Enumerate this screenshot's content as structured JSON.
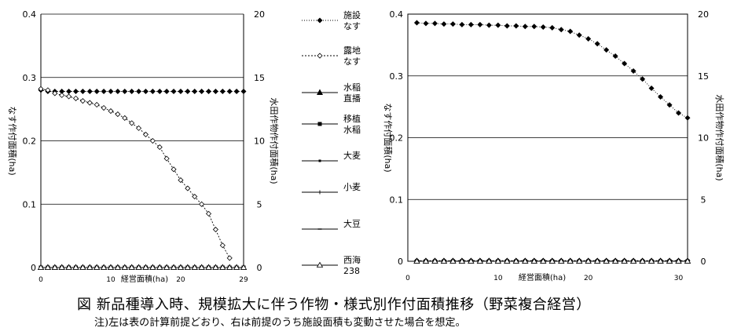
{
  "caption": "図 新品種導入時、規模拡大に伴う作物・様式別作付面積推移（野菜複合経営）",
  "note": "注)左は表の計算前提どおり、右は前提のうち施設面積も変動させた場合を想定。",
  "legend": [
    {
      "key": "shisetsu",
      "label": [
        "施設",
        "なす"
      ]
    },
    {
      "key": "roji",
      "label": [
        "露地",
        "なす"
      ]
    },
    {
      "key": "chokuha",
      "label": [
        "水稲",
        "直播"
      ]
    },
    {
      "key": "ishoku",
      "label": [
        "移植",
        "水稲"
      ]
    },
    {
      "key": "omugi",
      "label": [
        "大麦"
      ]
    },
    {
      "key": "komugi",
      "label": [
        "小麦"
      ]
    },
    {
      "key": "daizu",
      "label": [
        "大豆"
      ]
    },
    {
      "key": "saikai",
      "label": [
        "西海",
        "238"
      ]
    }
  ],
  "chart_data": [
    {
      "type": "line",
      "xlabel": "経営面積(ha)",
      "ylabel_left": "なす作付面積(ha)",
      "ylabel_right": "水田作物作付面積(ha)",
      "xlim": [
        0,
        29
      ],
      "ylim_left": [
        0,
        0.4
      ],
      "ylim_right": [
        0,
        20
      ],
      "xticks": [
        0,
        10,
        20,
        29
      ],
      "xtick_labels": [
        "0",
        "10",
        "20",
        "29"
      ],
      "yticks_left": [
        "0",
        "0.1",
        "0.2",
        "0.3",
        "0.4"
      ],
      "yticks_right": [
        "0",
        "5",
        "10",
        "15",
        "20"
      ],
      "grid": "horizontal",
      "series": [
        {
          "name": "施設なす",
          "axis": "left",
          "x": [
            0,
            1,
            2,
            3,
            4,
            5,
            6,
            7,
            8,
            9,
            10,
            11,
            12,
            13,
            14,
            15,
            16,
            17,
            18,
            19,
            20,
            21,
            22,
            23,
            24,
            25,
            26,
            27,
            28,
            29
          ],
          "y": [
            0.28,
            0.278,
            0.278,
            0.278,
            0.278,
            0.278,
            0.278,
            0.278,
            0.278,
            0.278,
            0.278,
            0.278,
            0.278,
            0.278,
            0.278,
            0.278,
            0.278,
            0.278,
            0.278,
            0.278,
            0.278,
            0.278,
            0.278,
            0.278,
            0.278,
            0.278,
            0.278,
            0.278,
            0.278,
            0.278
          ]
        },
        {
          "name": "露地なす",
          "axis": "left",
          "x": [
            0,
            1,
            2,
            3,
            4,
            5,
            6,
            7,
            8,
            9,
            10,
            11,
            12,
            13,
            14,
            15,
            16,
            17,
            18,
            19,
            20,
            21,
            22,
            23,
            24,
            25,
            26,
            27
          ],
          "y": [
            0.282,
            0.28,
            0.275,
            0.272,
            0.27,
            0.267,
            0.263,
            0.26,
            0.257,
            0.252,
            0.247,
            0.242,
            0.236,
            0.228,
            0.22,
            0.21,
            0.2,
            0.19,
            0.172,
            0.155,
            0.138,
            0.125,
            0.112,
            0.1,
            0.085,
            0.06,
            0.035,
            0.015
          ]
        },
        {
          "name": "水稲直播",
          "axis": "right",
          "x": [
            0,
            1,
            2,
            3,
            4,
            5,
            6,
            7,
            8,
            9,
            10,
            11,
            12,
            13,
            14,
            15,
            16,
            17,
            18,
            19,
            20,
            21,
            22,
            23,
            24,
            25,
            26,
            27,
            28,
            29
          ],
          "y": [
            0,
            0,
            0,
            0,
            0,
            0,
            0,
            0,
            0,
            0,
            0,
            0,
            0,
            0,
            0,
            0,
            0,
            0,
            0,
            0,
            0,
            0,
            0,
            0,
            0,
            0,
            0,
            0,
            0,
            0
          ]
        },
        {
          "name": "移植水稲",
          "axis": "right",
          "x": [
            0,
            1,
            2,
            3,
            4,
            5,
            6,
            7,
            8,
            9,
            10,
            11,
            12,
            13,
            14,
            15,
            16,
            17,
            18,
            19,
            20,
            21,
            22,
            23,
            24,
            25,
            26,
            27,
            28,
            29
          ],
          "y": [
            0,
            0,
            0,
            0,
            0,
            0,
            0,
            0,
            0,
            0,
            0,
            0,
            0,
            0,
            0,
            0,
            0,
            0,
            0,
            0,
            0,
            0,
            0,
            0,
            0,
            0,
            0,
            0,
            0,
            0
          ]
        },
        {
          "name": "大麦",
          "axis": "right",
          "x": [
            0,
            1,
            2,
            3,
            4,
            5,
            6,
            7,
            8,
            9,
            10,
            11,
            12,
            13,
            14,
            15,
            16,
            17,
            18,
            19,
            20,
            21,
            22,
            23,
            24,
            25,
            26,
            27,
            28,
            29
          ],
          "y": [
            0,
            0,
            0,
            0,
            0,
            0,
            0,
            0,
            0,
            0,
            0,
            0,
            0,
            0,
            0,
            0,
            0,
            0,
            0,
            0,
            0,
            0,
            0,
            0,
            0,
            0,
            0,
            0,
            0,
            0
          ]
        },
        {
          "name": "小麦",
          "axis": "right",
          "x": [
            0,
            1,
            2,
            3,
            4,
            5,
            6,
            7,
            8,
            9,
            10,
            11,
            12,
            13,
            14,
            15,
            16,
            17,
            18,
            19,
            20,
            21,
            22,
            23,
            24,
            25,
            26,
            27,
            28,
            29
          ],
          "y": [
            0,
            0,
            0,
            0,
            0,
            0,
            0,
            0,
            0,
            0,
            0,
            0,
            0,
            0,
            0,
            0,
            0,
            0,
            0,
            0,
            0,
            0,
            0,
            0,
            0,
            0,
            0,
            0,
            0,
            0
          ]
        },
        {
          "name": "大豆",
          "axis": "right",
          "x": [
            0,
            1,
            2,
            3,
            4,
            5,
            6,
            7,
            8,
            9,
            10,
            11,
            12,
            13,
            14,
            15,
            16,
            17,
            18,
            19,
            20,
            21,
            22,
            23,
            24,
            25,
            26,
            27,
            28,
            29
          ],
          "y": [
            0,
            0,
            0,
            0,
            0,
            0,
            0,
            0,
            0,
            0,
            0,
            0,
            0,
            0,
            0,
            0,
            0,
            0,
            0,
            0,
            0,
            0,
            0,
            0,
            0,
            0,
            0,
            0,
            0,
            0
          ]
        },
        {
          "name": "西海238",
          "axis": "right",
          "x": [
            0,
            1,
            2,
            3,
            4,
            5,
            6,
            7,
            8,
            9,
            10,
            11,
            12,
            13,
            14,
            15,
            16,
            17,
            18,
            19,
            20,
            21,
            22,
            23,
            24,
            25,
            26,
            27,
            28,
            29
          ],
          "y": [
            0,
            0,
            0,
            0,
            0,
            0,
            0,
            0,
            0,
            0,
            0,
            0,
            0,
            0,
            0,
            0,
            0,
            0,
            0,
            0,
            0,
            0,
            0,
            0,
            0,
            0,
            0,
            0,
            0,
            0
          ]
        }
      ]
    },
    {
      "type": "line",
      "xlabel": "経営面積(ha)",
      "ylabel_left": "なす作付面積(ha)",
      "ylabel_right": "水田作物作付面積(ha)",
      "xlim": [
        0,
        31
      ],
      "ylim_left": [
        0,
        0.4
      ],
      "ylim_right": [
        0,
        20
      ],
      "xticks": [
        0,
        10,
        20,
        30
      ],
      "xtick_labels": [
        "0",
        "10",
        "20",
        "30"
      ],
      "yticks_left": [
        "0",
        "0.1",
        "0.2",
        "0.3",
        "0.4"
      ],
      "yticks_right": [
        "0",
        "5",
        "10",
        "15",
        "20"
      ],
      "grid": "horizontal",
      "series": [
        {
          "name": "施設なす",
          "axis": "left",
          "x": [
            1,
            2,
            3,
            4,
            5,
            6,
            7,
            8,
            9,
            10,
            11,
            12,
            13,
            14,
            15,
            16,
            17,
            18,
            19,
            20,
            21,
            22,
            23,
            24,
            25,
            26,
            27,
            28,
            29,
            30,
            31
          ],
          "y": [
            0.386,
            0.385,
            0.385,
            0.384,
            0.384,
            0.383,
            0.383,
            0.383,
            0.382,
            0.382,
            0.381,
            0.381,
            0.38,
            0.38,
            0.379,
            0.378,
            0.375,
            0.372,
            0.366,
            0.36,
            0.352,
            0.342,
            0.332,
            0.32,
            0.308,
            0.295,
            0.28,
            0.266,
            0.253,
            0.24,
            0.232
          ]
        },
        {
          "name": "露地なす",
          "axis": "left",
          "x": [
            1,
            2,
            3,
            4,
            5,
            6,
            7,
            8,
            9,
            10,
            11,
            12,
            13,
            14,
            15,
            16,
            17,
            18,
            19,
            20,
            21,
            22,
            23,
            24,
            25,
            26,
            27,
            28,
            29,
            30,
            31
          ],
          "y": [
            0.001,
            0.001,
            0.001,
            0.001,
            0.001,
            0.001,
            0.001,
            0.001,
            0.001,
            0.001,
            0.001,
            0.001,
            0.001,
            0.001,
            0.001,
            0.001,
            0.001,
            0.001,
            0.001,
            0.001,
            0.001,
            0.001,
            0.001,
            0.001,
            0.001,
            0.001,
            0.001,
            0.001,
            0.001,
            0.001,
            0.001
          ]
        },
        {
          "name": "水稲直播",
          "axis": "right",
          "x": [
            1,
            2,
            3,
            4,
            5,
            6,
            7,
            8,
            9,
            10,
            11,
            12,
            13,
            14,
            15,
            16,
            17,
            18,
            19,
            20,
            21,
            22,
            23,
            24,
            25,
            26,
            27,
            28,
            29,
            30,
            31
          ],
          "y": [
            0,
            0,
            0,
            0,
            0,
            0,
            0,
            0,
            0,
            0,
            0,
            0,
            0,
            0,
            0,
            0,
            0,
            0,
            0,
            0,
            0,
            0,
            0,
            0,
            0,
            0,
            0,
            0,
            0,
            0,
            0
          ]
        },
        {
          "name": "移植水稲",
          "axis": "right",
          "x": [
            1,
            2,
            3,
            4,
            5,
            6,
            7,
            8,
            9,
            10,
            11,
            12,
            13,
            14,
            15,
            16,
            17,
            18,
            19,
            20,
            21,
            22,
            23,
            24,
            25,
            26,
            27,
            28,
            29,
            30,
            31
          ],
          "y": [
            0,
            0,
            0,
            0,
            0,
            0,
            0,
            0,
            0,
            0,
            0,
            0,
            0,
            0,
            0,
            0,
            0,
            0,
            0,
            0,
            0,
            0,
            0,
            0,
            0,
            0,
            0,
            0,
            0,
            0,
            0
          ]
        },
        {
          "name": "大麦",
          "axis": "right",
          "x": [
            1,
            2,
            3,
            4,
            5,
            6,
            7,
            8,
            9,
            10,
            11,
            12,
            13,
            14,
            15,
            16,
            17,
            18,
            19,
            20,
            21,
            22,
            23,
            24,
            25,
            26,
            27,
            28,
            29,
            30,
            31
          ],
          "y": [
            0,
            0,
            0,
            0,
            0,
            0,
            0,
            0,
            0,
            0,
            0,
            0,
            0,
            0,
            0,
            0,
            0,
            0,
            0,
            0,
            0,
            0,
            0,
            0,
            0,
            0,
            0,
            0,
            0,
            0,
            0
          ]
        },
        {
          "name": "小麦",
          "axis": "right",
          "x": [
            1,
            2,
            3,
            4,
            5,
            6,
            7,
            8,
            9,
            10,
            11,
            12,
            13,
            14,
            15,
            16,
            17,
            18,
            19,
            20,
            21,
            22,
            23,
            24,
            25,
            26,
            27,
            28,
            29,
            30,
            31
          ],
          "y": [
            0,
            0,
            0,
            0,
            0,
            0,
            0,
            0,
            0,
            0,
            0,
            0,
            0,
            0,
            0,
            0,
            0,
            0,
            0,
            0,
            0,
            0,
            0,
            0,
            0,
            0,
            0,
            0,
            0,
            0,
            0
          ]
        },
        {
          "name": "大豆",
          "axis": "right",
          "x": [
            1,
            2,
            3,
            4,
            5,
            6,
            7,
            8,
            9,
            10,
            11,
            12,
            13,
            14,
            15,
            16,
            17,
            18,
            19,
            20,
            21,
            22,
            23,
            24,
            25,
            26,
            27,
            28,
            29,
            30,
            31
          ],
          "y": [
            0,
            0,
            0,
            0,
            0,
            0,
            0,
            0,
            0,
            0,
            0,
            0,
            0,
            0,
            0,
            0,
            0,
            0,
            0,
            0,
            0,
            0,
            0,
            0,
            0,
            0,
            0,
            0,
            0,
            0,
            0
          ]
        },
        {
          "name": "西海238",
          "axis": "right",
          "x": [
            1,
            2,
            3,
            4,
            5,
            6,
            7,
            8,
            9,
            10,
            11,
            12,
            13,
            14,
            15,
            16,
            17,
            18,
            19,
            20,
            21,
            22,
            23,
            24,
            25,
            26,
            27,
            28,
            29,
            30,
            31
          ],
          "y": [
            0,
            0,
            0,
            0,
            0,
            0,
            0,
            0,
            0,
            0,
            0,
            0,
            0,
            0,
            0,
            0,
            0,
            0,
            0,
            0,
            0,
            0,
            0,
            0,
            0,
            0,
            0,
            0,
            0,
            0,
            0
          ]
        }
      ]
    }
  ]
}
